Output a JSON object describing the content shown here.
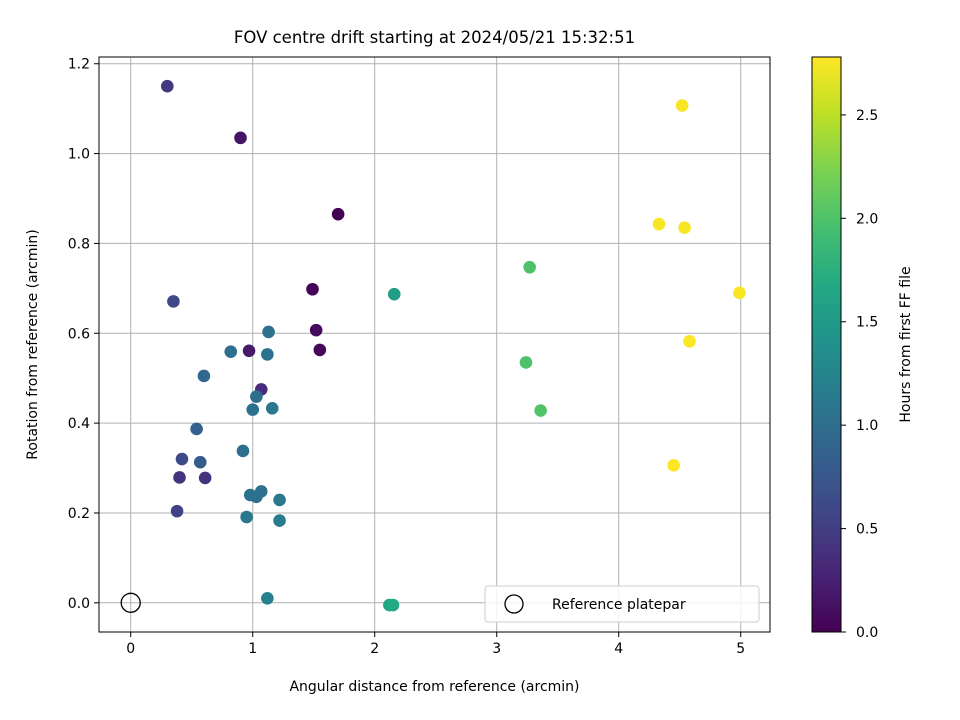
{
  "chart_data": {
    "type": "scatter",
    "title": "FOV centre drift starting at 2024/05/21 15:32:51",
    "xlabel": "Angular distance from reference (arcmin)",
    "ylabel": "Rotation from reference (arcmin)",
    "xlim": [
      -0.26,
      5.24
    ],
    "ylim": [
      -0.065,
      1.215
    ],
    "xticks": [
      0,
      1,
      2,
      3,
      4,
      5
    ],
    "xtick_labels": [
      "0",
      "1",
      "2",
      "3",
      "4",
      "5"
    ],
    "yticks": [
      0.0,
      0.2,
      0.4,
      0.6,
      0.8,
      1.0,
      1.2
    ],
    "ytick_labels": [
      "0.0",
      "0.2",
      "0.4",
      "0.6",
      "0.8",
      "1.0",
      "1.2"
    ],
    "grid": true,
    "colorbar": {
      "label": "Hours from first FF file",
      "range": [
        0,
        2.78
      ],
      "colormap": "viridis",
      "ticks": [
        0.0,
        0.5,
        1.0,
        1.5,
        2.0,
        2.5
      ],
      "tick_labels": [
        "0.0",
        "0.5",
        "1.0",
        "1.5",
        "2.0",
        "2.5"
      ]
    },
    "legend": {
      "placement": "lower-right",
      "entries": [
        {
          "label": "Reference platepar",
          "marker": "open-circle"
        }
      ]
    },
    "reference_point": {
      "x": 0,
      "y": 0
    },
    "points": [
      {
        "x": 1.7,
        "y": 0.865,
        "hours": 0.0
      },
      {
        "x": 1.49,
        "y": 0.698,
        "hours": 0.03
      },
      {
        "x": 1.55,
        "y": 0.563,
        "hours": 0.05
      },
      {
        "x": 1.52,
        "y": 0.607,
        "hours": 0.08
      },
      {
        "x": 0.9,
        "y": 1.035,
        "hours": 0.15
      },
      {
        "x": 0.97,
        "y": 0.561,
        "hours": 0.2
      },
      {
        "x": 1.07,
        "y": 0.475,
        "hours": 0.35
      },
      {
        "x": 0.3,
        "y": 1.15,
        "hours": 0.45
      },
      {
        "x": 0.61,
        "y": 0.278,
        "hours": 0.4
      },
      {
        "x": 0.4,
        "y": 0.279,
        "hours": 0.42
      },
      {
        "x": 0.38,
        "y": 0.204,
        "hours": 0.55
      },
      {
        "x": 0.35,
        "y": 0.671,
        "hours": 0.6
      },
      {
        "x": 0.42,
        "y": 0.32,
        "hours": 0.62
      },
      {
        "x": 0.57,
        "y": 0.313,
        "hours": 0.8
      },
      {
        "x": 0.54,
        "y": 0.387,
        "hours": 0.85
      },
      {
        "x": 0.6,
        "y": 0.505,
        "hours": 0.95
      },
      {
        "x": 0.82,
        "y": 0.559,
        "hours": 1.0
      },
      {
        "x": 0.92,
        "y": 0.338,
        "hours": 1.0
      },
      {
        "x": 1.03,
        "y": 0.459,
        "hours": 1.0
      },
      {
        "x": 1.13,
        "y": 0.603,
        "hours": 1.05
      },
      {
        "x": 1.12,
        "y": 0.553,
        "hours": 1.05
      },
      {
        "x": 1.0,
        "y": 0.43,
        "hours": 1.05
      },
      {
        "x": 1.16,
        "y": 0.433,
        "hours": 1.1
      },
      {
        "x": 0.98,
        "y": 0.24,
        "hours": 1.05
      },
      {
        "x": 1.03,
        "y": 0.236,
        "hours": 1.05
      },
      {
        "x": 1.07,
        "y": 0.248,
        "hours": 1.05
      },
      {
        "x": 0.95,
        "y": 0.191,
        "hours": 1.1
      },
      {
        "x": 1.22,
        "y": 0.229,
        "hours": 1.1
      },
      {
        "x": 1.22,
        "y": 0.183,
        "hours": 1.15
      },
      {
        "x": 1.12,
        "y": 0.01,
        "hours": 1.2
      },
      {
        "x": 2.16,
        "y": 0.687,
        "hours": 1.55
      },
      {
        "x": 2.12,
        "y": -0.005,
        "hours": 1.65
      },
      {
        "x": 2.15,
        "y": -0.005,
        "hours": 1.68
      },
      {
        "x": 3.27,
        "y": 0.747,
        "hours": 2.0
      },
      {
        "x": 3.24,
        "y": 0.535,
        "hours": 2.0
      },
      {
        "x": 3.36,
        "y": 0.428,
        "hours": 2.02
      },
      {
        "x": 4.52,
        "y": 1.107,
        "hours": 2.75
      },
      {
        "x": 4.33,
        "y": 0.843,
        "hours": 2.75
      },
      {
        "x": 4.54,
        "y": 0.835,
        "hours": 2.75
      },
      {
        "x": 4.99,
        "y": 0.69,
        "hours": 2.76
      },
      {
        "x": 4.58,
        "y": 0.582,
        "hours": 2.77
      },
      {
        "x": 4.45,
        "y": 0.306,
        "hours": 2.78
      }
    ]
  }
}
